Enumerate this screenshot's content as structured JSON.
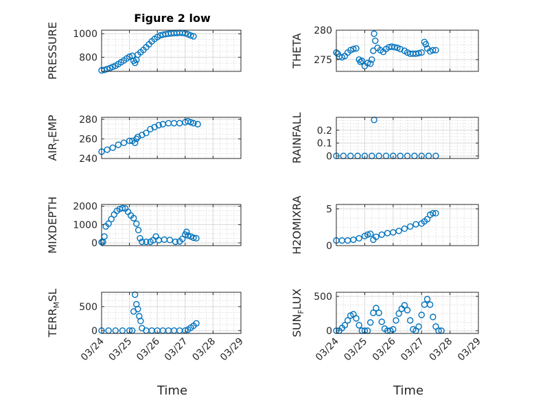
{
  "figure": {
    "title": "Figure 2 low",
    "xlabel": "Time",
    "accent_color": "#0072BD",
    "grid_color": "#d9d9d9"
  },
  "chart_data": [
    {
      "id": "pressure",
      "type": "scatter",
      "title": "Figure 2 low",
      "ylabel": "PRESSURE",
      "ylim": [
        680,
        1030
      ],
      "yticks": [
        800,
        1000
      ],
      "xlim": [
        0,
        5
      ],
      "xticks": [
        "03/24",
        "03/25",
        "03/26",
        "03/27",
        "03/28",
        "03/29"
      ],
      "xticks_shown": false,
      "grid": true,
      "points": [
        [
          0,
          688
        ],
        [
          0.1,
          692
        ],
        [
          0.2,
          700
        ],
        [
          0.3,
          708
        ],
        [
          0.4,
          718
        ],
        [
          0.5,
          728
        ],
        [
          0.6,
          742
        ],
        [
          0.7,
          758
        ],
        [
          0.8,
          772
        ],
        [
          0.9,
          790
        ],
        [
          1.0,
          804
        ],
        [
          1.1,
          812
        ],
        [
          1.15,
          770
        ],
        [
          1.2,
          752
        ],
        [
          1.25,
          778
        ],
        [
          1.3,
          822
        ],
        [
          1.4,
          842
        ],
        [
          1.5,
          862
        ],
        [
          1.6,
          885
        ],
        [
          1.7,
          910
        ],
        [
          1.8,
          935
        ],
        [
          1.9,
          955
        ],
        [
          2.0,
          972
        ],
        [
          2.1,
          985
        ],
        [
          2.2,
          992
        ],
        [
          2.3,
          996
        ],
        [
          2.4,
          1000
        ],
        [
          2.5,
          1003
        ],
        [
          2.6,
          1005
        ],
        [
          2.7,
          1006
        ],
        [
          2.8,
          1008
        ],
        [
          2.9,
          1007
        ],
        [
          3.0,
          1004
        ],
        [
          3.1,
          995
        ],
        [
          3.2,
          985
        ],
        [
          3.3,
          978
        ]
      ]
    },
    {
      "id": "theta",
      "type": "scatter",
      "ylabel": "THETA",
      "ylim": [
        273,
        280
      ],
      "yticks": [
        275,
        280
      ],
      "xlim": [
        0,
        5
      ],
      "xticks": [
        "03/24",
        "03/25",
        "03/26",
        "03/27",
        "03/28",
        "03/29"
      ],
      "xticks_shown": false,
      "grid": true,
      "points": [
        [
          0,
          276.2
        ],
        [
          0.05,
          276.0
        ],
        [
          0.1,
          275.5
        ],
        [
          0.2,
          275.4
        ],
        [
          0.3,
          275.6
        ],
        [
          0.4,
          276.2
        ],
        [
          0.5,
          276.6
        ],
        [
          0.6,
          276.8
        ],
        [
          0.7,
          276.9
        ],
        [
          0.8,
          275.0
        ],
        [
          0.85,
          274.6
        ],
        [
          0.9,
          274.8
        ],
        [
          1.0,
          273.9
        ],
        [
          1.1,
          274.4
        ],
        [
          1.2,
          274.3
        ],
        [
          1.25,
          275.0
        ],
        [
          1.3,
          276.5
        ],
        [
          1.33,
          279.4
        ],
        [
          1.37,
          278.2
        ],
        [
          1.45,
          277.0
        ],
        [
          1.55,
          276.6
        ],
        [
          1.65,
          276.3
        ],
        [
          1.75,
          276.8
        ],
        [
          1.85,
          277.1
        ],
        [
          1.95,
          277.2
        ],
        [
          2.05,
          277.1
        ],
        [
          2.15,
          277.0
        ],
        [
          2.25,
          276.8
        ],
        [
          2.4,
          276.5
        ],
        [
          2.5,
          276.2
        ],
        [
          2.6,
          276.0
        ],
        [
          2.7,
          276.0
        ],
        [
          2.8,
          276.0
        ],
        [
          2.9,
          276.1
        ],
        [
          3.0,
          276.2
        ],
        [
          3.1,
          278.0
        ],
        [
          3.15,
          277.6
        ],
        [
          3.2,
          276.9
        ],
        [
          3.3,
          276.4
        ],
        [
          3.4,
          276.6
        ],
        [
          3.5,
          276.6
        ]
      ]
    },
    {
      "id": "air_temp",
      "type": "scatter",
      "ylabel": "AIR_TEMP",
      "ylabel_render": [
        "AIR",
        "T",
        "EMP"
      ],
      "ylim": [
        240,
        282
      ],
      "yticks": [
        240,
        260,
        280
      ],
      "xlim": [
        0,
        5
      ],
      "xticks": [
        "03/24",
        "03/25",
        "03/26",
        "03/27",
        "03/28",
        "03/29"
      ],
      "xticks_shown": false,
      "grid": true,
      "points": [
        [
          0,
          247
        ],
        [
          0.2,
          249
        ],
        [
          0.4,
          251
        ],
        [
          0.6,
          254
        ],
        [
          0.8,
          256
        ],
        [
          1.0,
          258
        ],
        [
          1.1,
          258
        ],
        [
          1.2,
          256
        ],
        [
          1.25,
          260
        ],
        [
          1.3,
          262
        ],
        [
          1.45,
          264
        ],
        [
          1.6,
          266
        ],
        [
          1.75,
          270
        ],
        [
          1.9,
          272
        ],
        [
          2.05,
          274
        ],
        [
          2.2,
          275
        ],
        [
          2.4,
          276
        ],
        [
          2.6,
          276
        ],
        [
          2.8,
          276
        ],
        [
          3.0,
          277
        ],
        [
          3.1,
          278
        ],
        [
          3.2,
          277
        ],
        [
          3.3,
          276
        ],
        [
          3.45,
          275
        ]
      ]
    },
    {
      "id": "rainfall",
      "type": "scatter",
      "ylabel": "RAINFALL",
      "ylim": [
        -0.02,
        0.3
      ],
      "yticks": [
        0,
        0.1,
        0.2
      ],
      "xlim": [
        0,
        5
      ],
      "xticks": [
        "03/24",
        "03/25",
        "03/26",
        "03/27",
        "03/28",
        "03/29"
      ],
      "xticks_shown": false,
      "grid": true,
      "points": [
        [
          0,
          0
        ],
        [
          0.25,
          0
        ],
        [
          0.5,
          0
        ],
        [
          0.75,
          0
        ],
        [
          1.0,
          0
        ],
        [
          1.25,
          0
        ],
        [
          1.33,
          0.28
        ],
        [
          1.5,
          0
        ],
        [
          1.75,
          0
        ],
        [
          2.0,
          0
        ],
        [
          2.25,
          0
        ],
        [
          2.5,
          0
        ],
        [
          2.75,
          0
        ],
        [
          3.0,
          0
        ],
        [
          3.25,
          0
        ],
        [
          3.5,
          0
        ]
      ]
    },
    {
      "id": "mixdepth",
      "type": "scatter",
      "ylabel": "MIXDEPTH",
      "ylim": [
        -150,
        2100
      ],
      "yticks": [
        0,
        1000,
        2000
      ],
      "xlim": [
        0,
        5
      ],
      "xticks": [
        "03/24",
        "03/25",
        "03/26",
        "03/27",
        "03/28",
        "03/29"
      ],
      "xticks_shown": false,
      "grid": true,
      "points": [
        [
          0,
          40
        ],
        [
          0.05,
          50
        ],
        [
          0.1,
          350
        ],
        [
          0.15,
          900
        ],
        [
          0.25,
          1050
        ],
        [
          0.35,
          1300
        ],
        [
          0.45,
          1550
        ],
        [
          0.55,
          1750
        ],
        [
          0.65,
          1850
        ],
        [
          0.75,
          1900
        ],
        [
          0.85,
          1880
        ],
        [
          0.95,
          1700
        ],
        [
          1.05,
          1500
        ],
        [
          1.15,
          1350
        ],
        [
          1.25,
          1050
        ],
        [
          1.32,
          700
        ],
        [
          1.38,
          250
        ],
        [
          1.45,
          60
        ],
        [
          1.6,
          60
        ],
        [
          1.75,
          60
        ],
        [
          1.85,
          150
        ],
        [
          1.95,
          350
        ],
        [
          2.05,
          150
        ],
        [
          2.25,
          180
        ],
        [
          2.45,
          160
        ],
        [
          2.65,
          60
        ],
        [
          2.8,
          80
        ],
        [
          2.9,
          220
        ],
        [
          3.0,
          450
        ],
        [
          3.05,
          600
        ],
        [
          3.1,
          400
        ],
        [
          3.2,
          350
        ],
        [
          3.3,
          280
        ],
        [
          3.4,
          250
        ]
      ]
    },
    {
      "id": "h2omixra",
      "type": "scatter",
      "ylabel": "H2OMIXRA",
      "ylim": [
        0,
        5.6
      ],
      "yticks": [
        0,
        5
      ],
      "xlim": [
        0,
        5
      ],
      "xticks": [
        "03/24",
        "03/25",
        "03/26",
        "03/27",
        "03/28",
        "03/29"
      ],
      "xticks_shown": false,
      "grid": true,
      "points": [
        [
          0,
          0.7
        ],
        [
          0.2,
          0.7
        ],
        [
          0.4,
          0.7
        ],
        [
          0.6,
          0.8
        ],
        [
          0.8,
          1.0
        ],
        [
          1.0,
          1.3
        ],
        [
          1.1,
          1.5
        ],
        [
          1.2,
          1.6
        ],
        [
          1.3,
          0.8
        ],
        [
          1.4,
          1.2
        ],
        [
          1.6,
          1.5
        ],
        [
          1.8,
          1.7
        ],
        [
          2.0,
          1.8
        ],
        [
          2.2,
          2.0
        ],
        [
          2.4,
          2.3
        ],
        [
          2.6,
          2.6
        ],
        [
          2.8,
          2.9
        ],
        [
          3.0,
          3.0
        ],
        [
          3.1,
          3.3
        ],
        [
          3.2,
          3.6
        ],
        [
          3.3,
          4.2
        ],
        [
          3.4,
          4.4
        ],
        [
          3.5,
          4.4
        ]
      ]
    },
    {
      "id": "terr_msl",
      "type": "scatter",
      "ylabel": "TERR_MSL",
      "ylabel_render": [
        "TERR",
        "M",
        "SL"
      ],
      "ylim": [
        -60,
        800
      ],
      "yticks": [
        0,
        500
      ],
      "xlim": [
        0,
        5
      ],
      "xticks": [
        "03/24",
        "03/25",
        "03/26",
        "03/27",
        "03/28",
        "03/29"
      ],
      "xticks_shown": true,
      "grid": true,
      "points": [
        [
          0,
          0
        ],
        [
          0.25,
          0
        ],
        [
          0.5,
          0
        ],
        [
          0.75,
          0
        ],
        [
          1.0,
          0
        ],
        [
          1.1,
          0
        ],
        [
          1.15,
          400
        ],
        [
          1.2,
          750
        ],
        [
          1.25,
          550
        ],
        [
          1.3,
          450
        ],
        [
          1.35,
          300
        ],
        [
          1.4,
          200
        ],
        [
          1.45,
          50
        ],
        [
          1.6,
          0
        ],
        [
          1.8,
          0
        ],
        [
          2.0,
          0
        ],
        [
          2.2,
          0
        ],
        [
          2.4,
          0
        ],
        [
          2.6,
          0
        ],
        [
          2.8,
          0
        ],
        [
          3.0,
          0
        ],
        [
          3.1,
          20
        ],
        [
          3.2,
          60
        ],
        [
          3.3,
          100
        ],
        [
          3.4,
          150
        ]
      ]
    },
    {
      "id": "sun_flux",
      "type": "scatter",
      "ylabel": "SUN_FLUX",
      "ylabel_render": [
        "SUN",
        "F",
        "LUX"
      ],
      "ylim": [
        -40,
        560
      ],
      "yticks": [
        0,
        500
      ],
      "xlim": [
        0,
        5
      ],
      "xticks": [
        "03/24",
        "03/25",
        "03/26",
        "03/27",
        "03/28",
        "03/29"
      ],
      "xticks_shown": true,
      "grid": true,
      "points": [
        [
          0,
          0
        ],
        [
          0.1,
          0
        ],
        [
          0.2,
          40
        ],
        [
          0.3,
          80
        ],
        [
          0.4,
          150
        ],
        [
          0.5,
          220
        ],
        [
          0.6,
          240
        ],
        [
          0.7,
          180
        ],
        [
          0.8,
          80
        ],
        [
          0.9,
          0
        ],
        [
          1.0,
          0
        ],
        [
          1.1,
          0
        ],
        [
          1.2,
          120
        ],
        [
          1.3,
          260
        ],
        [
          1.4,
          330
        ],
        [
          1.5,
          260
        ],
        [
          1.6,
          130
        ],
        [
          1.7,
          30
        ],
        [
          1.8,
          0
        ],
        [
          1.9,
          0
        ],
        [
          2.0,
          20
        ],
        [
          2.1,
          150
        ],
        [
          2.2,
          250
        ],
        [
          2.3,
          320
        ],
        [
          2.4,
          370
        ],
        [
          2.5,
          300
        ],
        [
          2.6,
          150
        ],
        [
          2.7,
          20
        ],
        [
          2.8,
          0
        ],
        [
          2.9,
          60
        ],
        [
          3.0,
          230
        ],
        [
          3.1,
          380
        ],
        [
          3.2,
          460
        ],
        [
          3.3,
          380
        ],
        [
          3.4,
          200
        ],
        [
          3.5,
          60
        ],
        [
          3.6,
          0
        ],
        [
          3.7,
          0
        ]
      ]
    }
  ]
}
